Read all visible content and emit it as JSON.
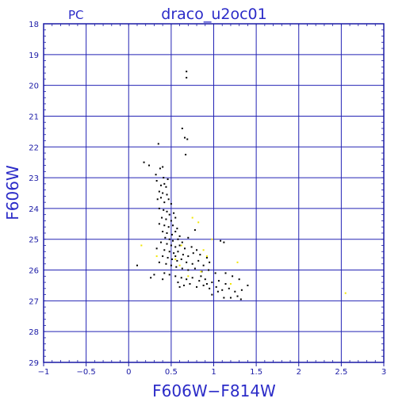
{
  "chart_data": {
    "type": "scatter",
    "title": "draco_u2oc01",
    "corner_label": "PC",
    "xlabel": "F606W−F814W",
    "ylabel": "F606W",
    "xlim": [
      -1,
      3
    ],
    "ylim": [
      29,
      18
    ],
    "y_inverted": true,
    "grid": true,
    "x_ticks": [
      -1,
      -0.5,
      0,
      0.5,
      1,
      1.5,
      2,
      2.5,
      3
    ],
    "x_tick_labels": [
      "−1",
      "−0.5",
      "0",
      "0.5",
      "1",
      "1.5",
      "2",
      "2.5",
      "3"
    ],
    "y_ticks": [
      18,
      19,
      20,
      21,
      22,
      23,
      24,
      25,
      26,
      27,
      28,
      29
    ],
    "y_tick_labels": [
      "18",
      "19",
      "20",
      "21",
      "22",
      "23",
      "24",
      "25",
      "26",
      "27",
      "28",
      "29"
    ],
    "colors": {
      "frame": "#1a1aa6",
      "grid": "#2323b4",
      "text": "#2b2bc8",
      "series_black": "#000000",
      "series_yellow": "#f2e600"
    },
    "series": [
      {
        "color": "#000000",
        "points": [
          [
            0.68,
            19.55
          ],
          [
            0.68,
            19.75
          ],
          [
            0.63,
            21.4
          ],
          [
            0.66,
            21.7
          ],
          [
            0.69,
            21.75
          ],
          [
            0.67,
            22.25
          ],
          [
            0.35,
            21.9
          ],
          [
            0.18,
            22.5
          ],
          [
            0.24,
            22.6
          ],
          [
            0.37,
            22.7
          ],
          [
            0.4,
            22.65
          ],
          [
            0.32,
            22.9
          ],
          [
            0.33,
            23.1
          ],
          [
            0.41,
            23.0
          ],
          [
            0.46,
            23.05
          ],
          [
            0.38,
            23.25
          ],
          [
            0.42,
            23.2
          ],
          [
            0.44,
            23.3
          ],
          [
            0.36,
            23.45
          ],
          [
            0.4,
            23.5
          ],
          [
            0.45,
            23.55
          ],
          [
            0.34,
            23.7
          ],
          [
            0.38,
            23.65
          ],
          [
            0.42,
            23.8
          ],
          [
            0.47,
            23.7
          ],
          [
            0.5,
            23.85
          ],
          [
            0.36,
            24.0
          ],
          [
            0.41,
            24.05
          ],
          [
            0.45,
            24.1
          ],
          [
            0.48,
            24.2
          ],
          [
            0.53,
            24.15
          ],
          [
            0.39,
            24.3
          ],
          [
            0.44,
            24.35
          ],
          [
            0.5,
            24.4
          ],
          [
            0.55,
            24.3
          ],
          [
            0.36,
            24.5
          ],
          [
            0.42,
            24.55
          ],
          [
            0.47,
            24.6
          ],
          [
            0.52,
            24.55
          ],
          [
            0.57,
            24.65
          ],
          [
            0.4,
            24.75
          ],
          [
            0.45,
            24.8
          ],
          [
            0.51,
            24.85
          ],
          [
            0.55,
            24.75
          ],
          [
            0.6,
            24.9
          ],
          [
            0.43,
            24.95
          ],
          [
            0.48,
            25.0
          ],
          [
            0.52,
            25.05
          ],
          [
            0.58,
            25.0
          ],
          [
            0.63,
            25.1
          ],
          [
            0.7,
            24.95
          ],
          [
            0.78,
            24.7
          ],
          [
            0.38,
            25.1
          ],
          [
            0.45,
            25.15
          ],
          [
            0.5,
            25.2
          ],
          [
            0.55,
            25.25
          ],
          [
            0.6,
            25.2
          ],
          [
            0.66,
            25.3
          ],
          [
            0.74,
            25.25
          ],
          [
            0.8,
            25.35
          ],
          [
            0.33,
            25.3
          ],
          [
            0.42,
            25.35
          ],
          [
            0.48,
            25.4
          ],
          [
            0.53,
            25.45
          ],
          [
            0.58,
            25.4
          ],
          [
            0.64,
            25.5
          ],
          [
            0.7,
            25.55
          ],
          [
            0.76,
            25.45
          ],
          [
            0.84,
            25.5
          ],
          [
            0.92,
            25.6
          ],
          [
            0.4,
            25.55
          ],
          [
            0.46,
            25.6
          ],
          [
            0.51,
            25.65
          ],
          [
            0.57,
            25.7
          ],
          [
            0.62,
            25.65
          ],
          [
            0.68,
            25.75
          ],
          [
            0.75,
            25.8
          ],
          [
            0.82,
            25.7
          ],
          [
            0.88,
            25.85
          ],
          [
            0.95,
            25.75
          ],
          [
            0.36,
            25.75
          ],
          [
            0.44,
            25.8
          ],
          [
            0.5,
            25.85
          ],
          [
            0.56,
            25.9
          ],
          [
            0.63,
            25.95
          ],
          [
            0.7,
            26.0
          ],
          [
            0.78,
            25.95
          ],
          [
            0.86,
            26.05
          ],
          [
            0.94,
            26.0
          ],
          [
            1.02,
            26.1
          ],
          [
            0.3,
            26.15
          ],
          [
            0.42,
            26.1
          ],
          [
            0.48,
            26.15
          ],
          [
            0.55,
            26.2
          ],
          [
            0.62,
            26.25
          ],
          [
            0.68,
            26.3
          ],
          [
            0.75,
            26.25
          ],
          [
            0.83,
            26.35
          ],
          [
            0.9,
            26.3
          ],
          [
            0.98,
            26.4
          ],
          [
            1.06,
            26.35
          ],
          [
            1.14,
            26.45
          ],
          [
            0.4,
            26.3
          ],
          [
            0.58,
            26.4
          ],
          [
            0.65,
            26.5
          ],
          [
            0.72,
            26.45
          ],
          [
            0.8,
            26.55
          ],
          [
            0.88,
            26.5
          ],
          [
            0.95,
            26.6
          ],
          [
            1.03,
            26.55
          ],
          [
            1.1,
            26.65
          ],
          [
            1.18,
            26.6
          ],
          [
            1.25,
            26.7
          ],
          [
            1.33,
            26.65
          ],
          [
            1.4,
            26.5
          ],
          [
            1.2,
            26.9
          ],
          [
            1.28,
            26.85
          ],
          [
            1.32,
            26.95
          ],
          [
            1.12,
            26.9
          ],
          [
            0.98,
            26.8
          ],
          [
            1.14,
            26.1
          ],
          [
            1.22,
            26.2
          ],
          [
            1.08,
            25.05
          ],
          [
            1.12,
            25.1
          ],
          [
            0.1,
            25.85
          ],
          [
            1.3,
            26.3
          ],
          [
            0.26,
            26.25
          ],
          [
            0.85,
            26.2
          ],
          [
            1.05,
            26.7
          ],
          [
            0.6,
            26.55
          ],
          [
            0.92,
            26.45
          ],
          [
            0.55,
            25.55
          ]
        ]
      },
      {
        "color": "#f2e600",
        "points": [
          [
            0.15,
            25.2
          ],
          [
            0.33,
            25.55
          ],
          [
            0.55,
            25.65
          ],
          [
            0.62,
            25.2
          ],
          [
            0.75,
            24.3
          ],
          [
            0.82,
            24.45
          ],
          [
            0.88,
            25.35
          ],
          [
            0.92,
            25.55
          ],
          [
            0.98,
            25.0
          ],
          [
            1.28,
            25.75
          ],
          [
            0.6,
            25.85
          ],
          [
            0.85,
            26.05
          ],
          [
            0.7,
            26.2
          ],
          [
            1.2,
            26.45
          ],
          [
            2.55,
            26.75
          ]
        ]
      }
    ]
  }
}
